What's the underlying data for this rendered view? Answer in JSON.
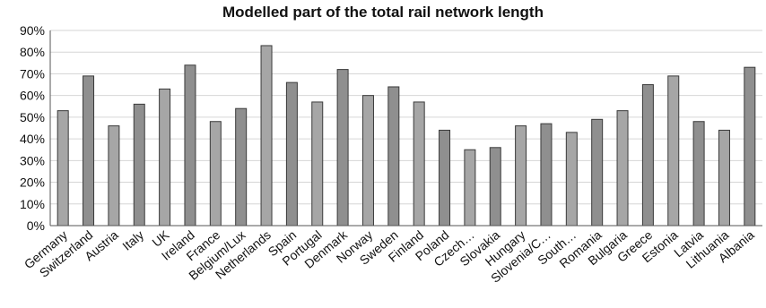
{
  "chart_data": {
    "type": "bar",
    "title": "Modelled part of the total rail network length",
    "xlabel": "",
    "ylabel": "",
    "ylim": [
      0,
      90
    ],
    "y_ticks": [
      "0%",
      "10%",
      "20%",
      "30%",
      "40%",
      "50%",
      "60%",
      "70%",
      "80%",
      "90%"
    ],
    "grid": true,
    "categories": [
      "Germany",
      "Switzerland",
      "Austria",
      "Italy",
      "UK",
      "Ireland",
      "France",
      "Belgium/Lux",
      "Netherlands",
      "Spain",
      "Portugal",
      "Denmark",
      "Norway",
      "Sweden",
      "Finland",
      "Poland",
      "Czech…",
      "Slovakia",
      "Hungary",
      "Slovenia/C…",
      "South…",
      "Romania",
      "Bulgaria",
      "Greece",
      "Estonia",
      "Latvia",
      "Lithuania",
      "Albania"
    ],
    "values": [
      53,
      69,
      46,
      56,
      63,
      74,
      48,
      54,
      83,
      66,
      57,
      72,
      60,
      64,
      57,
      44,
      35,
      36,
      46,
      47,
      43,
      49,
      53,
      65,
      69,
      48,
      44,
      73
    ],
    "colors": {
      "bar_fill_light": "#a6a6a6",
      "bar_fill_dark": "#8f8f8f",
      "bar_stroke": "#3a3a3a",
      "axis": "#555555",
      "grid": "#d6d6d6"
    }
  }
}
